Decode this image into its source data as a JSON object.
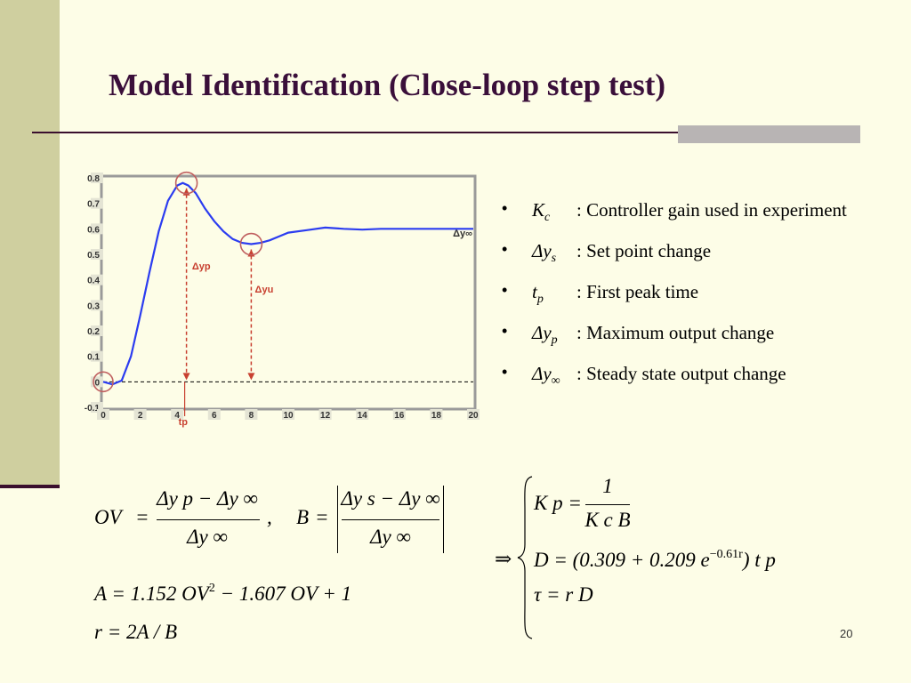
{
  "slide": {
    "title": "Model Identification (Close-loop step test)",
    "page_number": "20"
  },
  "colors": {
    "background": "#fdfde7",
    "side_band": "#cfcf9f",
    "title_text": "#3a0f3a",
    "curve": "#2b3cf0",
    "annotation": "#c84030",
    "marker_circle": "#c06060"
  },
  "bullets": [
    {
      "symbol": "K",
      "sub": "c",
      "text": ": Controller gain used in experiment"
    },
    {
      "symbol": "Δy",
      "sub": "s",
      "text": ": Set point change"
    },
    {
      "symbol": "t",
      "sub": "p",
      "text": ": First peak time"
    },
    {
      "symbol": "Δy",
      "sub": "p",
      "text": ": Maximum output change"
    },
    {
      "symbol": "Δy",
      "sub": "∞",
      "text": ": Steady state output change"
    }
  ],
  "equations": {
    "ov_lhs": "OV",
    "eq": "=",
    "ov_num": "Δy p − Δy ∞",
    "ov_den": "Δy ∞",
    "comma": ",",
    "b_lhs": "B",
    "b_num": "Δy s − Δy ∞",
    "b_den": "Δy ∞",
    "a_eq_left": "A = 1.152 OV",
    "a_eq_sup": "2",
    "a_eq_right": " − 1.607 OV + 1",
    "r_eq": "r = 2A / B",
    "implies": "⇒",
    "kp_lhs": "K p =",
    "kp_num": "1",
    "kp_den": "K c B",
    "d_eq_left": "D = (0.309 + 0.209 e",
    "d_eq_sup": "−0.61r",
    "d_eq_right": ") t p",
    "tau_eq": "τ = r D"
  },
  "chart_data": {
    "type": "line",
    "xlim": [
      0,
      20
    ],
    "ylim": [
      -0.1,
      0.8
    ],
    "x_ticks": [
      "0",
      "2",
      "4",
      "6",
      "8",
      "10",
      "12",
      "14",
      "16",
      "18",
      "20"
    ],
    "y_ticks": [
      "-0.1",
      "0",
      "0.1",
      "0.2",
      "0.3",
      "0.4",
      "0.5",
      "0.6",
      "0.7",
      "0.8"
    ],
    "grid": false,
    "series": [
      {
        "x": [
          0,
          0.5,
          1.0,
          1.5,
          2.0,
          2.5,
          3.0,
          3.5,
          4.0,
          4.3,
          4.6,
          5.0,
          5.5,
          6.0,
          6.5,
          7.0,
          7.5,
          8.0,
          8.5,
          9.0,
          9.5,
          10.0,
          11.0,
          12.0,
          13.0,
          14.0,
          15.0,
          16.0,
          18.0,
          20.0
        ],
        "y": [
          0.0,
          -0.01,
          0.005,
          0.1,
          0.26,
          0.43,
          0.59,
          0.71,
          0.77,
          0.78,
          0.77,
          0.74,
          0.68,
          0.63,
          0.59,
          0.56,
          0.545,
          0.54,
          0.545,
          0.555,
          0.57,
          0.585,
          0.595,
          0.605,
          0.6,
          0.597,
          0.6,
          0.6,
          0.6,
          0.6
        ]
      }
    ],
    "baseline_y": 0,
    "annotations": {
      "steady_label": "Δy∞",
      "peak_label": "Δyp",
      "undershoot_label": "Δyu",
      "tp_label": "tp",
      "peak": {
        "x": 4.5,
        "y": 0.78
      },
      "undershoot": {
        "x": 8.0,
        "y": 0.54
      },
      "start": {
        "x": 0.0,
        "y": 0.0
      }
    }
  }
}
